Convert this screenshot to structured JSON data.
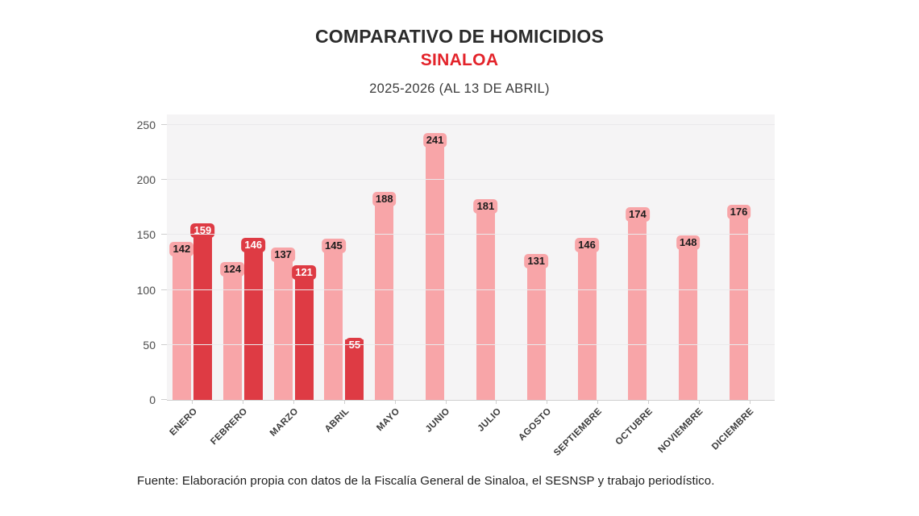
{
  "chart_data": {
    "type": "bar",
    "title": "COMPARATIVO DE HOMICIDIOS",
    "subtitle": "SINALOA",
    "period_label": "2025-2026 (AL 13 DE ABRIL)",
    "categories": [
      "ENERO",
      "FEBRERO",
      "MARZO",
      "ABRIL",
      "MAYO",
      "JUNIO",
      "JULIO",
      "AGOSTO",
      "SEPTIEMBRE",
      "OCTUBRE",
      "NOVIEMBRE",
      "DICIEMBRE"
    ],
    "series": [
      {
        "name": "2025",
        "color": "#F8A5A8",
        "label_text_color": "#1C1C1C",
        "values": [
          142,
          124,
          137,
          145,
          188,
          241,
          181,
          131,
          146,
          174,
          148,
          176
        ]
      },
      {
        "name": "2026",
        "color": "#DE3B44",
        "label_text_color": "#FFFFFF",
        "values": [
          159,
          146,
          121,
          55,
          null,
          null,
          null,
          null,
          null,
          null,
          null,
          null
        ]
      }
    ],
    "ylim": [
      0,
      250
    ],
    "yticks": [
      0,
      50,
      100,
      150,
      200,
      250
    ],
    "grid": true,
    "legend": "none",
    "xlabel": "",
    "ylabel": "",
    "colors": {
      "title": "#2B2B2B",
      "subtitle": "#E3232A",
      "period": "#3C3C3C",
      "plot_bg": "#F5F4F5",
      "gridline": "#EAE9EB",
      "axis_line": "#CFCFCF",
      "y_tick_label": "#4C4C4C",
      "x_tick_label": "#3B3B3B",
      "source": "#1E1E1E"
    }
  },
  "footer": {
    "source": "Fuente: Elaboración propia con datos de la Fiscalía General de Sinaloa, el SESNSP y trabajo periodístico."
  }
}
